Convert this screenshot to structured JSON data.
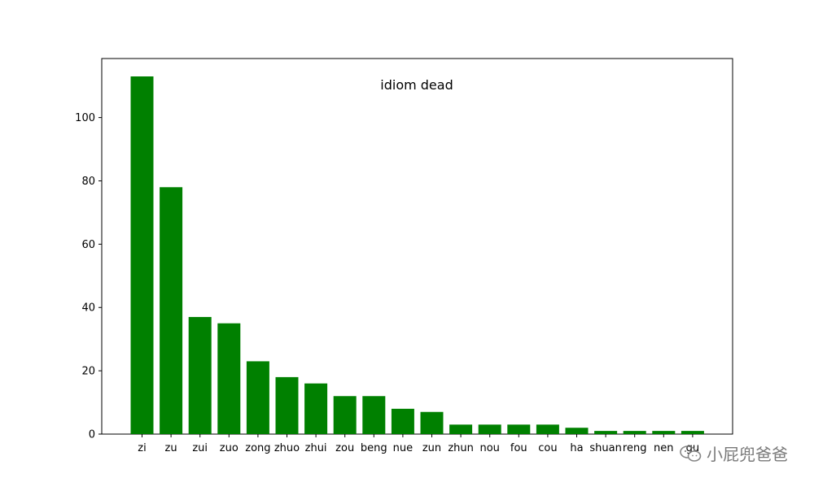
{
  "chart_data": {
    "type": "bar",
    "title": "idiom dead",
    "xlabel": "",
    "ylabel": "",
    "categories": [
      "zi",
      "zu",
      "zui",
      "zuo",
      "zong",
      "zhuo",
      "zhui",
      "zou",
      "beng",
      "nue",
      "zun",
      "zhun",
      "nou",
      "fou",
      "cou",
      "ha",
      "shuan",
      "reng",
      "nen",
      "gu"
    ],
    "values": [
      113,
      78,
      37,
      35,
      23,
      18,
      16,
      12,
      12,
      8,
      7,
      3,
      3,
      3,
      3,
      2,
      1,
      1,
      1,
      1
    ],
    "ylim": [
      0,
      118.65
    ],
    "yticks": [
      0,
      20,
      40,
      60,
      80,
      100
    ],
    "bar_color": "#008000",
    "grid": false,
    "legend": "none"
  },
  "watermark": {
    "text": "小屁兜爸爸",
    "icon": "wechat-icon"
  }
}
